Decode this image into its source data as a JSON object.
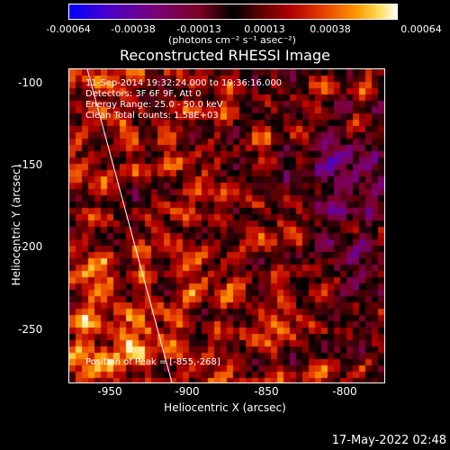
{
  "colorbar": {
    "ticks": [
      "-0.00064",
      "-0.00038",
      "-0.00013",
      "0.00013",
      "0.00038",
      "0.00064"
    ],
    "units": "(photons cm⁻² s⁻¹ asec⁻²)"
  },
  "plot": {
    "title": "Reconstructed RHESSI Image",
    "info_lines": [
      "11-Sep-2014 19:32:24.000 to 19:36:16.000",
      "Detectors: 3F 6F 9F, Att 0",
      "Energy Range: 25.0 - 50.0 keV",
      "Clean     Total counts: 1.58E+03"
    ],
    "peak_label": "Position of Peak = [-855,-268]",
    "xlabel": "Heliocentric X (arcsec)",
    "ylabel": "Heliocentric Y (arcsec)",
    "xticks": [
      "-950",
      "-900",
      "-850",
      "-800"
    ],
    "yticks": [
      "-100",
      "-150",
      "-200",
      "-250"
    ]
  },
  "footer": {
    "timestamp": "17-May-2022 02:48"
  }
}
